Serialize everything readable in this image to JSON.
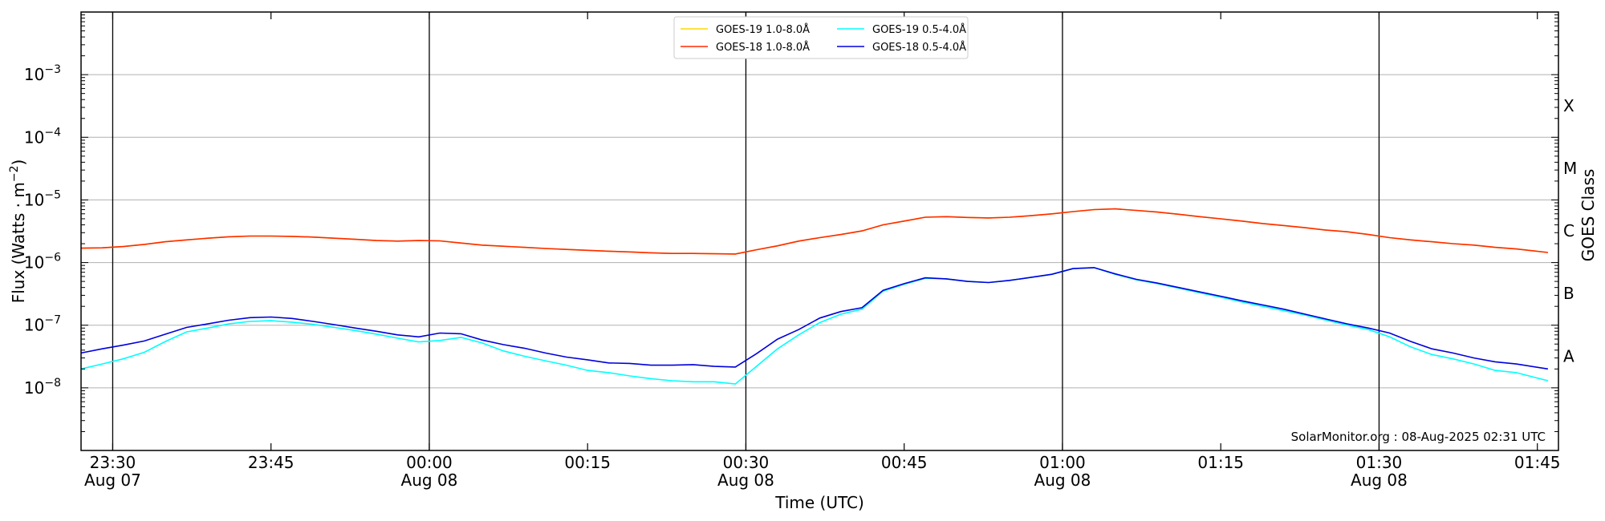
{
  "chart_data": {
    "type": "line",
    "xlabel": "Time (UTC)",
    "ylabel": "Flux (Watts · m",
    "ylabel_sup": "−2",
    "ylabel_end": ")",
    "right_axis_label": "GOES Class",
    "y_scale": "log",
    "ylim": [
      1e-09,
      0.01
    ],
    "xlim": [
      "2025-08-07 23:27",
      "2025-08-08 01:47"
    ],
    "grid": "horizontal at decades",
    "legend_position": "top-center",
    "watermark": "SolarMonitor.org : 08-Aug-2025 02:31 UTC",
    "y_ticks": [
      {
        "value": 1e-08,
        "base": "10",
        "exp": "−8"
      },
      {
        "value": 1e-07,
        "base": "10",
        "exp": "−7"
      },
      {
        "value": 1e-06,
        "base": "10",
        "exp": "−6"
      },
      {
        "value": 1e-05,
        "base": "10",
        "exp": "−5"
      },
      {
        "value": 0.0001,
        "base": "10",
        "exp": "−4"
      },
      {
        "value": 0.001,
        "base": "10",
        "exp": "−3"
      }
    ],
    "x_ticks": [
      {
        "time": "2025-08-07 23:30",
        "label": "23:30",
        "sub": "Aug 07"
      },
      {
        "time": "2025-08-07 23:45",
        "label": "23:45",
        "sub": ""
      },
      {
        "time": "2025-08-08 00:00",
        "label": "00:00",
        "sub": "Aug 08"
      },
      {
        "time": "2025-08-08 00:15",
        "label": "00:15",
        "sub": ""
      },
      {
        "time": "2025-08-08 00:30",
        "label": "00:30",
        "sub": "Aug 08"
      },
      {
        "time": "2025-08-08 00:45",
        "label": "00:45",
        "sub": ""
      },
      {
        "time": "2025-08-08 01:00",
        "label": "01:00",
        "sub": "Aug 08"
      },
      {
        "time": "2025-08-08 01:15",
        "label": "01:15",
        "sub": ""
      },
      {
        "time": "2025-08-08 01:30",
        "label": "01:30",
        "sub": "Aug 08"
      },
      {
        "time": "2025-08-08 01:45",
        "label": "01:45",
        "sub": ""
      }
    ],
    "vertical_lines": [
      "2025-08-07 23:30",
      "2025-08-08 00:00",
      "2025-08-08 00:30",
      "2025-08-08 01:00",
      "2025-08-08 01:30"
    ],
    "goes_classes": [
      {
        "label": "A",
        "value": 1e-08
      },
      {
        "label": "B",
        "value": 1e-07
      },
      {
        "label": "C",
        "value": 1e-06
      },
      {
        "label": "M",
        "value": 1e-05
      },
      {
        "label": "X",
        "value": 0.0001
      }
    ],
    "x": [
      "2025-08-07 23:27",
      "2025-08-07 23:29",
      "2025-08-07 23:31",
      "2025-08-07 23:33",
      "2025-08-07 23:35",
      "2025-08-07 23:37",
      "2025-08-07 23:39",
      "2025-08-07 23:41",
      "2025-08-07 23:43",
      "2025-08-07 23:45",
      "2025-08-07 23:47",
      "2025-08-07 23:49",
      "2025-08-07 23:51",
      "2025-08-07 23:53",
      "2025-08-07 23:55",
      "2025-08-07 23:57",
      "2025-08-07 23:59",
      "2025-08-08 00:01",
      "2025-08-08 00:03",
      "2025-08-08 00:05",
      "2025-08-08 00:07",
      "2025-08-08 00:09",
      "2025-08-08 00:11",
      "2025-08-08 00:13",
      "2025-08-08 00:15",
      "2025-08-08 00:17",
      "2025-08-08 00:19",
      "2025-08-08 00:21",
      "2025-08-08 00:23",
      "2025-08-08 00:25",
      "2025-08-08 00:27",
      "2025-08-08 00:29",
      "2025-08-08 00:31",
      "2025-08-08 00:33",
      "2025-08-08 00:35",
      "2025-08-08 00:37",
      "2025-08-08 00:39",
      "2025-08-08 00:41",
      "2025-08-08 00:43",
      "2025-08-08 00:45",
      "2025-08-08 00:47",
      "2025-08-08 00:49",
      "2025-08-08 00:51",
      "2025-08-08 00:53",
      "2025-08-08 00:55",
      "2025-08-08 00:57",
      "2025-08-08 00:59",
      "2025-08-08 01:01",
      "2025-08-08 01:03",
      "2025-08-08 01:05",
      "2025-08-08 01:07",
      "2025-08-08 01:09",
      "2025-08-08 01:11",
      "2025-08-08 01:13",
      "2025-08-08 01:15",
      "2025-08-08 01:17",
      "2025-08-08 01:19",
      "2025-08-08 01:21",
      "2025-08-08 01:23",
      "2025-08-08 01:25",
      "2025-08-08 01:27",
      "2025-08-08 01:29",
      "2025-08-08 01:31",
      "2025-08-08 01:33",
      "2025-08-08 01:35",
      "2025-08-08 01:37",
      "2025-08-08 01:39",
      "2025-08-08 01:41",
      "2025-08-08 01:43",
      "2025-08-08 01:46"
    ],
    "series": [
      {
        "name": "GOES-19 1.0-8.0Å",
        "color": "#ffd700",
        "values": [
          1.7e-06,
          1.72e-06,
          1.8e-06,
          1.95e-06,
          2.15e-06,
          2.3e-06,
          2.45e-06,
          2.58e-06,
          2.65e-06,
          2.65e-06,
          2.62e-06,
          2.55e-06,
          2.45e-06,
          2.35e-06,
          2.25e-06,
          2.2e-06,
          2.25e-06,
          2.22e-06,
          2.05e-06,
          1.9e-06,
          1.82e-06,
          1.75e-06,
          1.68e-06,
          1.62e-06,
          1.57e-06,
          1.52e-06,
          1.48e-06,
          1.43e-06,
          1.4e-06,
          1.4e-06,
          1.38e-06,
          1.37e-06,
          1.6e-06,
          1.85e-06,
          2.2e-06,
          2.5e-06,
          2.8e-06,
          3.2e-06,
          4e-06,
          4.6e-06,
          5.3e-06,
          5.4e-06,
          5.25e-06,
          5.15e-06,
          5.3e-06,
          5.6e-06,
          6e-06,
          6.5e-06,
          7e-06,
          7.2e-06,
          6.8e-06,
          6.4e-06,
          5.9e-06,
          5.4e-06,
          5e-06,
          4.6e-06,
          4.2e-06,
          3.9e-06,
          3.6e-06,
          3.3e-06,
          3.1e-06,
          2.8e-06,
          2.5e-06,
          2.3e-06,
          2.15e-06,
          2e-06,
          1.9e-06,
          1.75e-06,
          1.65e-06,
          1.45e-06
        ]
      },
      {
        "name": "GOES-18 1.0-8.0Å",
        "color": "#ff2a00",
        "values": [
          1.7e-06,
          1.72e-06,
          1.8e-06,
          1.95e-06,
          2.15e-06,
          2.3e-06,
          2.45e-06,
          2.58e-06,
          2.65e-06,
          2.65e-06,
          2.62e-06,
          2.55e-06,
          2.45e-06,
          2.35e-06,
          2.25e-06,
          2.2e-06,
          2.25e-06,
          2.22e-06,
          2.05e-06,
          1.9e-06,
          1.82e-06,
          1.75e-06,
          1.68e-06,
          1.62e-06,
          1.57e-06,
          1.52e-06,
          1.48e-06,
          1.43e-06,
          1.4e-06,
          1.4e-06,
          1.38e-06,
          1.37e-06,
          1.6e-06,
          1.85e-06,
          2.2e-06,
          2.5e-06,
          2.8e-06,
          3.2e-06,
          4e-06,
          4.6e-06,
          5.3e-06,
          5.4e-06,
          5.25e-06,
          5.15e-06,
          5.3e-06,
          5.6e-06,
          6e-06,
          6.5e-06,
          7e-06,
          7.2e-06,
          6.8e-06,
          6.4e-06,
          5.9e-06,
          5.4e-06,
          5e-06,
          4.6e-06,
          4.2e-06,
          3.9e-06,
          3.6e-06,
          3.3e-06,
          3.1e-06,
          2.8e-06,
          2.5e-06,
          2.3e-06,
          2.15e-06,
          2e-06,
          1.9e-06,
          1.75e-06,
          1.65e-06,
          1.45e-06
        ]
      },
      {
        "name": "GOES-19 0.5-4.0Å",
        "color": "#00ffff",
        "values": [
          2e-08,
          2.4e-08,
          2.9e-08,
          3.7e-08,
          5.5e-08,
          7.8e-08,
          9e-08,
          1.05e-07,
          1.15e-07,
          1.18e-07,
          1.12e-07,
          1.03e-07,
          9.2e-08,
          8.2e-08,
          7.2e-08,
          6.2e-08,
          5.4e-08,
          5.7e-08,
          6.4e-08,
          5.2e-08,
          3.9e-08,
          3.2e-08,
          2.7e-08,
          2.3e-08,
          1.9e-08,
          1.75e-08,
          1.55e-08,
          1.4e-08,
          1.3e-08,
          1.25e-08,
          1.25e-08,
          1.15e-08,
          2.2e-08,
          4.2e-08,
          7e-08,
          1.1e-07,
          1.5e-07,
          1.8e-07,
          3.5e-07,
          4.5e-07,
          5.6e-07,
          5.5e-07,
          5e-07,
          4.8e-07,
          5.2e-07,
          5.8e-07,
          6.5e-07,
          8e-07,
          8.3e-07,
          6.5e-07,
          5.3e-07,
          4.6e-07,
          3.9e-07,
          3.3e-07,
          2.8e-07,
          2.35e-07,
          2e-07,
          1.7e-07,
          1.45e-07,
          1.2e-07,
          1e-07,
          8.5e-08,
          6.5e-08,
          4.5e-08,
          3.4e-08,
          2.9e-08,
          2.4e-08,
          1.9e-08,
          1.75e-08,
          1.3e-08
        ]
      },
      {
        "name": "GOES-18 0.5-4.0Å",
        "color": "#0000dd",
        "values": [
          3.6e-08,
          4.2e-08,
          4.8e-08,
          5.6e-08,
          7.2e-08,
          9.2e-08,
          1.05e-07,
          1.2e-07,
          1.32e-07,
          1.35e-07,
          1.28e-07,
          1.15e-07,
          1.02e-07,
          9e-08,
          8e-08,
          7e-08,
          6.5e-08,
          7.5e-08,
          7.3e-08,
          5.8e-08,
          4.9e-08,
          4.3e-08,
          3.6e-08,
          3.1e-08,
          2.8e-08,
          2.5e-08,
          2.45e-08,
          2.3e-08,
          2.3e-08,
          2.35e-08,
          2.2e-08,
          2.15e-08,
          3.5e-08,
          6e-08,
          8.5e-08,
          1.3e-07,
          1.65e-07,
          1.9e-07,
          3.6e-07,
          4.6e-07,
          5.7e-07,
          5.5e-07,
          5e-07,
          4.8e-07,
          5.2e-07,
          5.8e-07,
          6.5e-07,
          8e-07,
          8.3e-07,
          6.6e-07,
          5.4e-07,
          4.7e-07,
          4e-07,
          3.4e-07,
          2.9e-07,
          2.45e-07,
          2.1e-07,
          1.8e-07,
          1.5e-07,
          1.25e-07,
          1.05e-07,
          9e-08,
          7.5e-08,
          5.5e-08,
          4.2e-08,
          3.6e-08,
          3e-08,
          2.6e-08,
          2.4e-08,
          2e-08
        ]
      }
    ]
  }
}
